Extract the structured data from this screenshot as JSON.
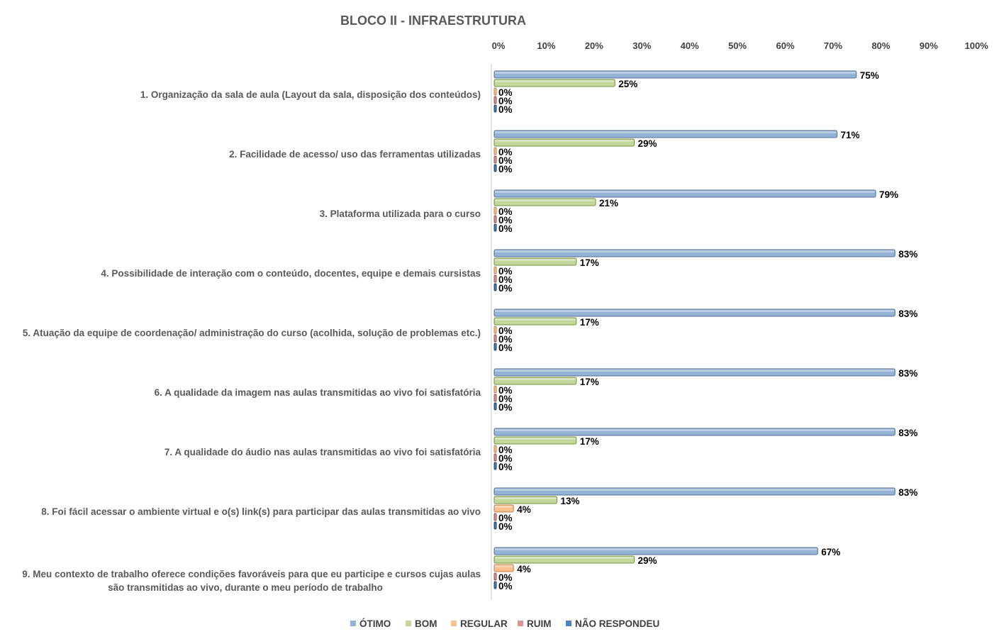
{
  "chart_data": {
    "type": "bar",
    "orientation": "horizontal",
    "title": "BLOCO II - INFRAESTRUTURA",
    "xlabel": "",
    "ylabel": "",
    "xlim": [
      0,
      100
    ],
    "x_ticks": [
      "0%",
      "10%",
      "20%",
      "30%",
      "40%",
      "50%",
      "60%",
      "70%",
      "80%",
      "90%",
      "100%"
    ],
    "x_axis_position": "top",
    "legend_position": "bottom",
    "grid": false,
    "categories": [
      [
        "1. Organização da sala de aula (Layout da sala, disposição dos conteúdos)"
      ],
      [
        "2. Facilidade de acesso/ uso das ferramentas utilizadas"
      ],
      [
        "3. Plataforma utilizada para o curso"
      ],
      [
        "4. Possibilidade de interação com o conteúdo, docentes, equipe e demais cursistas"
      ],
      [
        "5. Atuação da equipe de coordenação/ administração do curso (acolhida, solução de problemas etc.)"
      ],
      [
        "6. A qualidade da imagem nas aulas transmitidas ao vivo foi satisfatória"
      ],
      [
        "7. A qualidade do áudio nas aulas transmitidas ao vivo foi satisfatória"
      ],
      [
        "8. Foi fácil acessar o ambiente virtual e o(s) link(s) para participar das aulas transmitidas ao vivo"
      ],
      [
        "9. Meu contexto de trabalho oferece condições favoráveis para que eu participe e cursos cujas aulas",
        "são transmitidas ao vivo, durante o meu período de trabalho"
      ]
    ],
    "series": [
      {
        "name": "ÓTIMO",
        "color": "#95b3d7",
        "edge": "#4f6f99",
        "values": [
          75,
          71,
          79,
          83,
          83,
          83,
          83,
          83,
          67
        ]
      },
      {
        "name": "BOM",
        "color": "#c3d69b",
        "edge": "#76923c",
        "values": [
          25,
          29,
          21,
          17,
          17,
          17,
          17,
          13,
          29
        ]
      },
      {
        "name": "REGULAR",
        "color": "#fac090",
        "edge": "#c0814a",
        "values": [
          0,
          0,
          0,
          0,
          0,
          0,
          0,
          4,
          4
        ],
        "show_zero_label": [
          true,
          true,
          true,
          true,
          true,
          true,
          true,
          true,
          false
        ]
      },
      {
        "name": "RUIM",
        "color": "#d99694",
        "edge": "#8c4f4d",
        "values": [
          0,
          0,
          0,
          0,
          0,
          0,
          0,
          0,
          0
        ]
      },
      {
        "name": "NÃO RESPONDEU",
        "color": "#4f81bd",
        "edge": "#1f3d66",
        "values": [
          0,
          0,
          0,
          0,
          0,
          0,
          0,
          0,
          0
        ]
      }
    ],
    "value_label_format": "percent"
  }
}
